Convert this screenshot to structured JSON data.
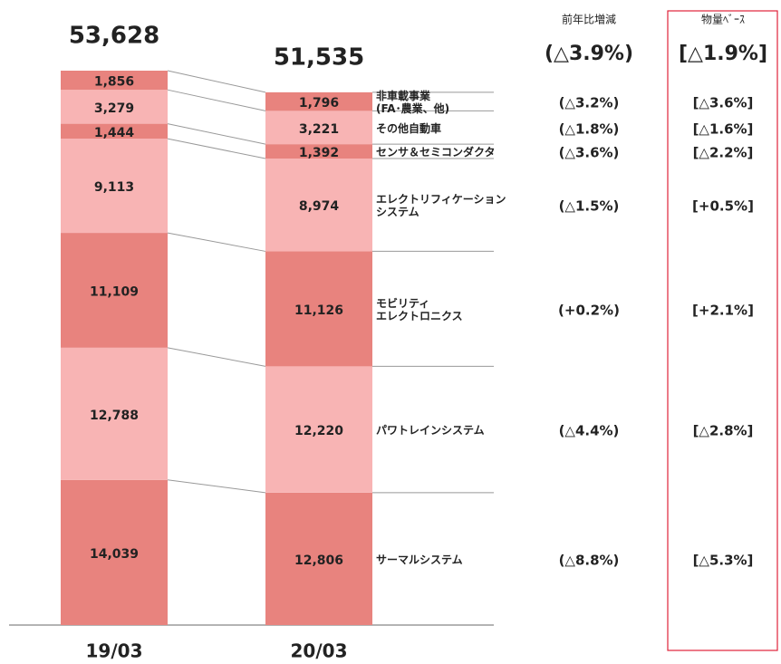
{
  "chart_data": {
    "type": "bar",
    "stacked": true,
    "categories": [
      "19/03",
      "20/03"
    ],
    "totals": [
      53628,
      51535
    ],
    "total_labels": [
      "53,628",
      "51,535"
    ],
    "yoy_header": "前年比増減",
    "volume_header": "物量ﾍﾞｰｽ",
    "total_yoy": "(△3.9%)",
    "total_volume": "[△1.9%]",
    "series": [
      {
        "name": "サーマルシステム",
        "color": "#e8837e",
        "values": [
          14039,
          12806
        ],
        "value_labels": [
          "14,039",
          "12,806"
        ],
        "yoy": "(△8.8%)",
        "volume": "[△5.3%]"
      },
      {
        "name": "パワトレインシステム",
        "color": "#f8b4b4",
        "values": [
          12788,
          12220
        ],
        "value_labels": [
          "12,788",
          "12,220"
        ],
        "yoy": "(△4.4%)",
        "volume": "[△2.8%]"
      },
      {
        "name": "モビリティ\nエレクトロニクス",
        "color": "#e8837e",
        "values": [
          11109,
          11126
        ],
        "value_labels": [
          "11,109",
          "11,126"
        ],
        "yoy": "(+0.2%)",
        "volume": "[+2.1%]"
      },
      {
        "name": "エレクトリフィケーション\nシステム",
        "color": "#f8b4b4",
        "values": [
          9113,
          8974
        ],
        "value_labels": [
          "9,113",
          "8,974"
        ],
        "yoy": "(△1.5%)",
        "volume": "[+0.5%]"
      },
      {
        "name": "センサ＆セミコンダクタ",
        "color": "#e8837e",
        "values": [
          1444,
          1392
        ],
        "value_labels": [
          "1,444",
          "1,392"
        ],
        "yoy": "(△3.6%)",
        "volume": "[△2.2%]"
      },
      {
        "name": "その他自動車",
        "color": "#f8b4b4",
        "values": [
          3279,
          3221
        ],
        "value_labels": [
          "3,279",
          "3,221"
        ],
        "yoy": "(△1.8%)",
        "volume": "[△1.6%]"
      },
      {
        "name": "非車載事業\n(FA･農業、他)",
        "color": "#e8837e",
        "values": [
          1856,
          1796
        ],
        "value_labels": [
          "1,856",
          "1,796"
        ],
        "yoy": "(△3.2%)",
        "volume": "[△3.6%]"
      }
    ]
  }
}
